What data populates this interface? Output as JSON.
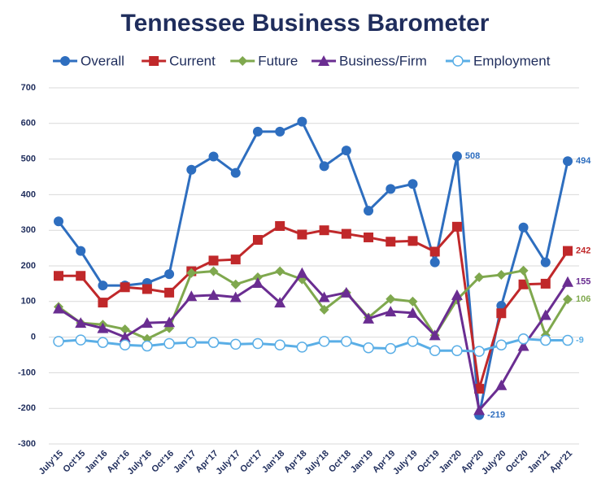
{
  "chart_data": {
    "type": "line",
    "title": "Tennessee Business Barometer",
    "categories": [
      "July'15",
      "Oct'15",
      "Jan'16",
      "Apr'16",
      "July'16",
      "Oct'16",
      "Jan'17",
      "Apr'17",
      "July'17",
      "Oct'17",
      "Jan'18",
      "Apr'18",
      "July'18",
      "Oct'18",
      "Jan'19",
      "Apr'19",
      "July'19",
      "Oct'19",
      "Jan'20",
      "Apr'20",
      "July'20",
      "Oct'20",
      "Jan'21",
      "Apr'21"
    ],
    "series": [
      {
        "name": "Overall",
        "color": "#2e6ebf",
        "marker": "circle",
        "values": [
          325,
          242,
          145,
          145,
          152,
          177,
          470,
          507,
          461,
          577,
          577,
          605,
          480,
          524,
          355,
          416,
          430,
          210,
          508,
          -219,
          88,
          308,
          210,
          494
        ],
        "value_labels": [
          null,
          null,
          null,
          null,
          null,
          null,
          null,
          null,
          null,
          null,
          null,
          null,
          null,
          null,
          null,
          null,
          null,
          null,
          "508",
          "-219",
          null,
          null,
          null,
          "494"
        ]
      },
      {
        "name": "Current",
        "color": "#c0282a",
        "marker": "square",
        "values": [
          172,
          172,
          97,
          140,
          135,
          125,
          185,
          215,
          218,
          273,
          312,
          288,
          300,
          290,
          280,
          268,
          270,
          240,
          310,
          -145,
          67,
          148,
          150,
          242
        ],
        "value_labels": [
          null,
          null,
          null,
          null,
          null,
          null,
          null,
          null,
          null,
          null,
          null,
          null,
          null,
          null,
          null,
          null,
          null,
          null,
          null,
          null,
          null,
          null,
          null,
          "242"
        ]
      },
      {
        "name": "Future",
        "color": "#7fa84e",
        "marker": "diamond",
        "values": [
          85,
          40,
          35,
          22,
          -5,
          25,
          180,
          185,
          148,
          168,
          185,
          162,
          77,
          125,
          55,
          107,
          100,
          5,
          105,
          168,
          175,
          187,
          5,
          106
        ],
        "value_labels": [
          null,
          null,
          null,
          null,
          null,
          null,
          null,
          null,
          null,
          null,
          null,
          null,
          null,
          null,
          null,
          null,
          null,
          null,
          null,
          null,
          null,
          null,
          null,
          "106"
        ]
      },
      {
        "name": "Business/Firm",
        "color": "#6a2d91",
        "marker": "triangle",
        "values": [
          80,
          40,
          25,
          0,
          40,
          42,
          115,
          118,
          112,
          152,
          97,
          180,
          112,
          125,
          52,
          72,
          68,
          5,
          118,
          -205,
          -135,
          -25,
          62,
          155
        ],
        "value_labels": [
          null,
          null,
          null,
          null,
          null,
          null,
          null,
          null,
          null,
          null,
          null,
          null,
          null,
          null,
          null,
          null,
          null,
          null,
          null,
          null,
          null,
          null,
          null,
          "155"
        ]
      },
      {
        "name": "Employment",
        "color": "#5aaee6",
        "marker": "open-circle",
        "values": [
          -12,
          -8,
          -15,
          -22,
          -25,
          -18,
          -15,
          -15,
          -20,
          -18,
          -22,
          -28,
          -12,
          -12,
          -30,
          -32,
          -12,
          -38,
          -38,
          -40,
          -22,
          -5,
          -9,
          -9
        ],
        "value_labels": [
          null,
          null,
          null,
          null,
          null,
          null,
          null,
          null,
          null,
          null,
          null,
          null,
          null,
          null,
          null,
          null,
          null,
          null,
          null,
          null,
          null,
          null,
          null,
          "-9"
        ]
      }
    ],
    "ylim": [
      -300,
      700
    ],
    "yticks": [
      -300,
      -200,
      -100,
      0,
      100,
      200,
      300,
      400,
      500,
      600,
      700
    ],
    "grid": true,
    "legend": "top"
  }
}
